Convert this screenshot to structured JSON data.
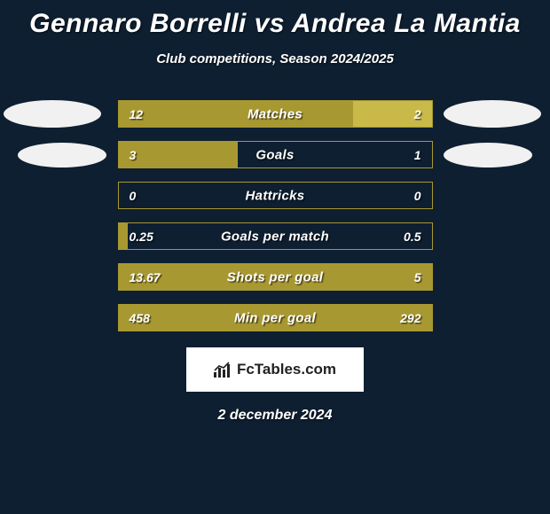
{
  "title": "Gennaro Borrelli vs Andrea La Mantia",
  "subtitle": "Club competitions, Season 2024/2025",
  "date": "2 december 2024",
  "logo": "FcTables.com",
  "colors": {
    "background": "#0e1f31",
    "left_bar": "#a89831",
    "right_bar": "#c9b948",
    "border": "#a89831",
    "avatar": "#f1f1f1",
    "logo_bg": "#ffffff",
    "logo_text": "#222222"
  },
  "stats": [
    {
      "label": "Matches",
      "left_val": "12",
      "right_val": "2",
      "left_pct": 75,
      "right_pct": 25
    },
    {
      "label": "Goals",
      "left_val": "3",
      "right_val": "1",
      "left_pct": 38,
      "right_pct": 0
    },
    {
      "label": "Hattricks",
      "left_val": "0",
      "right_val": "0",
      "left_pct": 0,
      "right_pct": 0
    },
    {
      "label": "Goals per match",
      "left_val": "0.25",
      "right_val": "0.5",
      "left_pct": 3,
      "right_pct": 0
    },
    {
      "label": "Shots per goal",
      "left_val": "13.67",
      "right_val": "5",
      "left_pct": 100,
      "right_pct": 0
    },
    {
      "label": "Min per goal",
      "left_val": "458",
      "right_val": "292",
      "left_pct": 100,
      "right_pct": 0
    }
  ]
}
